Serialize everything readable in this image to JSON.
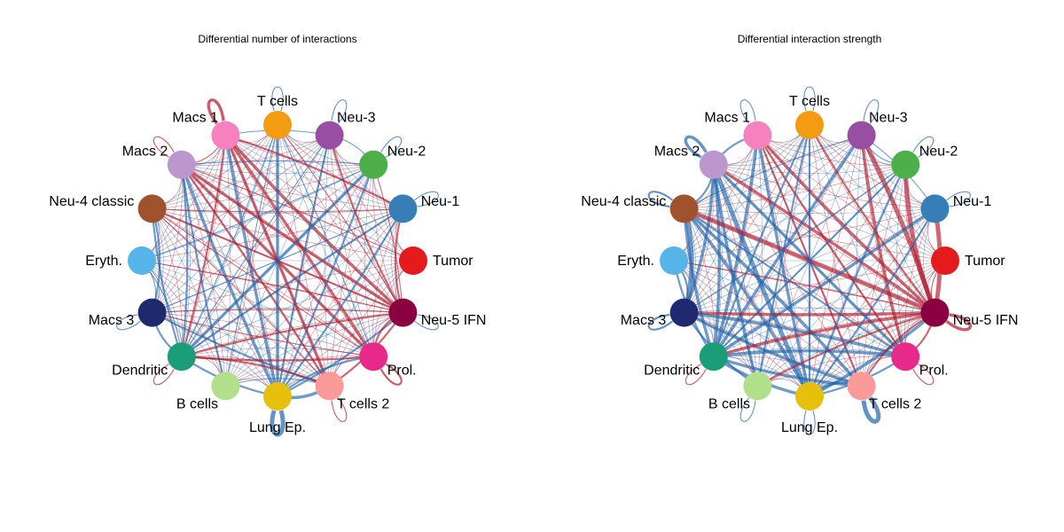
{
  "colors": {
    "increased": "#b2182b",
    "decreased": "#2166ac",
    "background": "#ffffff"
  },
  "nodes": [
    {
      "id": "tumor",
      "label": "Tumor",
      "color": "#e41a1c"
    },
    {
      "id": "neu1",
      "label": "Neu-1",
      "color": "#377eb8"
    },
    {
      "id": "neu2",
      "label": "Neu-2",
      "color": "#4daf4a"
    },
    {
      "id": "neu3",
      "label": "Neu-3",
      "color": "#984ea3"
    },
    {
      "id": "tcells",
      "label": "T cells",
      "color": "#f39c12"
    },
    {
      "id": "macs1",
      "label": "Macs 1",
      "color": "#f781bf"
    },
    {
      "id": "macs2",
      "label": "Macs 2",
      "color": "#bc97ce"
    },
    {
      "id": "neu4",
      "label": "Neu-4 classic",
      "color": "#a0522d"
    },
    {
      "id": "eryth",
      "label": "Eryth.",
      "color": "#56b4e9"
    },
    {
      "id": "macs3",
      "label": "Macs 3",
      "color": "#1f2a6e"
    },
    {
      "id": "dendritic",
      "label": "Dendritic",
      "color": "#1a9e77"
    },
    {
      "id": "bcells",
      "label": "B cells",
      "color": "#b2df8a"
    },
    {
      "id": "lungep",
      "label": "Lung Ep.",
      "color": "#e6c00a"
    },
    {
      "id": "tcells2",
      "label": "T cells 2",
      "color": "#fb9a99"
    },
    {
      "id": "prol",
      "label": "Prol.",
      "color": "#e7298a"
    },
    {
      "id": "neu5",
      "label": "Neu-5 IFN",
      "color": "#8b0040"
    }
  ],
  "panels": [
    {
      "title": "Differential number of interactions",
      "edges": [
        [
          "macs1",
          "tcells2",
          "increased",
          3
        ],
        [
          "macs1",
          "prol",
          "increased",
          3
        ],
        [
          "macs1",
          "neu5",
          "increased",
          3
        ],
        [
          "macs1",
          "lungep",
          "decreased",
          3
        ],
        [
          "macs1",
          "dendritic",
          "increased",
          2
        ],
        [
          "macs1",
          "neu1",
          "increased",
          2
        ],
        [
          "macs2",
          "neu5",
          "increased",
          3
        ],
        [
          "macs2",
          "prol",
          "increased",
          3
        ],
        [
          "macs2",
          "tcells2",
          "increased",
          2
        ],
        [
          "macs2",
          "lungep",
          "decreased",
          3
        ],
        [
          "macs2",
          "dendritic",
          "decreased",
          2
        ],
        [
          "macs2",
          "bcells",
          "decreased",
          2
        ],
        [
          "neu2",
          "dendritic",
          "decreased",
          3
        ],
        [
          "neu2",
          "lungep",
          "decreased",
          2
        ],
        [
          "neu1",
          "dendritic",
          "decreased",
          2
        ],
        [
          "tcells",
          "lungep",
          "decreased",
          3
        ],
        [
          "neu3",
          "lungep",
          "decreased",
          2
        ],
        [
          "tcells",
          "bcells",
          "decreased",
          1
        ],
        [
          "neu4",
          "neu5",
          "increased",
          2
        ],
        [
          "neu4",
          "prol",
          "increased",
          1
        ],
        [
          "neu4",
          "tcells2",
          "increased",
          1
        ],
        [
          "macs3",
          "tcells2",
          "decreased",
          2
        ],
        [
          "macs3",
          "neu5",
          "increased",
          1
        ],
        [
          "macs3",
          "prol",
          "increased",
          1
        ],
        [
          "dendritic",
          "neu5",
          "increased",
          2
        ],
        [
          "dendritic",
          "prol",
          "increased",
          2
        ],
        [
          "dendritic",
          "tcells2",
          "increased",
          2
        ],
        [
          "dendritic",
          "lungep",
          "decreased",
          2
        ],
        [
          "dendritic",
          "eryth",
          "decreased",
          1
        ],
        [
          "dendritic",
          "macs3",
          "decreased",
          2
        ],
        [
          "bcells",
          "tcells2",
          "decreased",
          1
        ],
        [
          "lungep",
          "tcells2",
          "decreased",
          3
        ],
        [
          "lungep",
          "prol",
          "decreased",
          2
        ],
        [
          "lungep",
          "neu5",
          "decreased",
          2
        ],
        [
          "prol",
          "neu5",
          "increased",
          2
        ],
        [
          "tcells2",
          "neu5",
          "increased",
          2
        ],
        [
          "neu5",
          "neu1",
          "increased",
          2
        ],
        [
          "neu5",
          "neu2",
          "increased",
          1
        ],
        [
          "neu5",
          "neu3",
          "increased",
          2
        ],
        [
          "neu5",
          "tcells",
          "increased",
          1
        ],
        [
          "neu5",
          "eryth",
          "increased",
          1
        ],
        [
          "prol",
          "tcells",
          "decreased",
          1
        ],
        [
          "neu4",
          "macs3",
          "decreased",
          2
        ],
        [
          "neu4",
          "dendritic",
          "decreased",
          2
        ],
        [
          "eryth",
          "macs3",
          "decreased",
          1
        ],
        [
          "neu3",
          "neu2",
          "decreased",
          1
        ],
        [
          "macs1",
          "macs2",
          "increased",
          1
        ],
        [
          "macs1",
          "neu3",
          "decreased",
          1
        ],
        [
          "neu4",
          "neu1",
          "increased",
          1
        ],
        [
          "macs2",
          "neu2",
          "decreased",
          1
        ],
        [
          "eryth",
          "neu2",
          "decreased",
          1
        ],
        [
          "tumor",
          "macs2",
          "increased",
          1
        ],
        [
          "neu1",
          "macs3",
          "decreased",
          1
        ],
        [
          "neu3",
          "dendritic",
          "decreased",
          1
        ],
        [
          "tcells",
          "dendritic",
          "decreased",
          1
        ],
        [
          "neu1",
          "lungep",
          "decreased",
          2
        ]
      ],
      "loops": [
        [
          "macs1",
          "increased",
          3
        ],
        [
          "macs2",
          "increased",
          1
        ],
        [
          "tcells",
          "decreased",
          1
        ],
        [
          "neu3",
          "decreased",
          1
        ],
        [
          "neu2",
          "decreased",
          1
        ],
        [
          "neu1",
          "decreased",
          1
        ],
        [
          "neu5",
          "decreased",
          1
        ],
        [
          "prol",
          "increased",
          2
        ],
        [
          "tcells2",
          "increased",
          1
        ],
        [
          "lungep",
          "decreased",
          4
        ],
        [
          "dendritic",
          "increased",
          1
        ],
        [
          "macs3",
          "decreased",
          1
        ]
      ]
    },
    {
      "title": "Differential interaction strength",
      "edges": [
        [
          "macs1",
          "neu5",
          "increased",
          3
        ],
        [
          "macs1",
          "tcells2",
          "increased",
          2
        ],
        [
          "macs1",
          "prol",
          "increased",
          2
        ],
        [
          "macs1",
          "lungep",
          "decreased",
          3
        ],
        [
          "macs1",
          "dendritic",
          "decreased",
          3
        ],
        [
          "macs2",
          "neu5",
          "increased",
          3
        ],
        [
          "macs2",
          "prol",
          "decreased",
          3
        ],
        [
          "macs2",
          "lungep",
          "decreased",
          4
        ],
        [
          "macs2",
          "dendritic",
          "decreased",
          3
        ],
        [
          "macs2",
          "bcells",
          "decreased",
          3
        ],
        [
          "macs2",
          "macs3",
          "decreased",
          3
        ],
        [
          "neu4",
          "neu5",
          "increased",
          4
        ],
        [
          "neu4",
          "tcells2",
          "decreased",
          3
        ],
        [
          "neu4",
          "prol",
          "decreased",
          2
        ],
        [
          "neu4",
          "macs3",
          "decreased",
          4
        ],
        [
          "neu4",
          "dendritic",
          "decreased",
          3
        ],
        [
          "neu4",
          "lungep",
          "decreased",
          3
        ],
        [
          "neu3",
          "neu5",
          "increased",
          4
        ],
        [
          "neu2",
          "neu5",
          "increased",
          4
        ],
        [
          "neu1",
          "neu5",
          "increased",
          4
        ],
        [
          "neu3",
          "prol",
          "increased",
          3
        ],
        [
          "neu3",
          "dendritic",
          "decreased",
          3
        ],
        [
          "neu2",
          "dendritic",
          "decreased",
          2
        ],
        [
          "neu1",
          "dendritic",
          "decreased",
          3
        ],
        [
          "tcells",
          "lungep",
          "decreased",
          2
        ],
        [
          "tcells",
          "dendritic",
          "decreased",
          2
        ],
        [
          "tcells",
          "neu5",
          "increased",
          2
        ],
        [
          "macs3",
          "neu5",
          "increased",
          3
        ],
        [
          "macs3",
          "prol",
          "decreased",
          3
        ],
        [
          "macs3",
          "tcells2",
          "decreased",
          3
        ],
        [
          "dendritic",
          "neu5",
          "increased",
          3
        ],
        [
          "dendritic",
          "tcells2",
          "decreased",
          3
        ],
        [
          "dendritic",
          "prol",
          "decreased",
          3
        ],
        [
          "dendritic",
          "lungep",
          "decreased",
          3
        ],
        [
          "bcells",
          "neu5",
          "increased",
          2
        ],
        [
          "lungep",
          "neu5",
          "decreased",
          3
        ],
        [
          "tcells2",
          "neu5",
          "increased",
          2
        ],
        [
          "prol",
          "neu5",
          "increased",
          2
        ],
        [
          "eryth",
          "macs3",
          "decreased",
          2
        ],
        [
          "eryth",
          "dendritic",
          "decreased",
          2
        ],
        [
          "eryth",
          "neu5",
          "increased",
          1
        ],
        [
          "neu1",
          "neu3",
          "decreased",
          1
        ],
        [
          "neu2",
          "neu3",
          "decreased",
          1
        ],
        [
          "macs1",
          "macs2",
          "decreased",
          2
        ],
        [
          "neu4",
          "macs2",
          "decreased",
          2
        ],
        [
          "neu1",
          "lungep",
          "decreased",
          2
        ],
        [
          "neu2",
          "lungep",
          "decreased",
          2
        ],
        [
          "tcells",
          "bcells",
          "decreased",
          2
        ],
        [
          "tcells2",
          "lungep",
          "decreased",
          3
        ],
        [
          "macs3",
          "bcells",
          "decreased",
          2
        ],
        [
          "tumor",
          "neu5",
          "increased",
          1
        ],
        [
          "neu4",
          "neu3",
          "decreased",
          1
        ],
        [
          "macs3",
          "neu2",
          "decreased",
          1
        ],
        [
          "prol",
          "lungep",
          "decreased",
          2
        ]
      ],
      "loops": [
        [
          "macs1",
          "decreased",
          1
        ],
        [
          "macs2",
          "decreased",
          3
        ],
        [
          "tcells",
          "decreased",
          1
        ],
        [
          "neu3",
          "decreased",
          1
        ],
        [
          "neu2",
          "decreased",
          1
        ],
        [
          "neu1",
          "decreased",
          1
        ],
        [
          "neu4",
          "decreased",
          2
        ],
        [
          "macs3",
          "decreased",
          2
        ],
        [
          "neu5",
          "increased",
          3
        ],
        [
          "prol",
          "increased",
          1
        ],
        [
          "tcells2",
          "decreased",
          4
        ],
        [
          "lungep",
          "decreased",
          1
        ],
        [
          "bcells",
          "decreased",
          1
        ],
        [
          "dendritic",
          "increased",
          1
        ]
      ]
    }
  ]
}
